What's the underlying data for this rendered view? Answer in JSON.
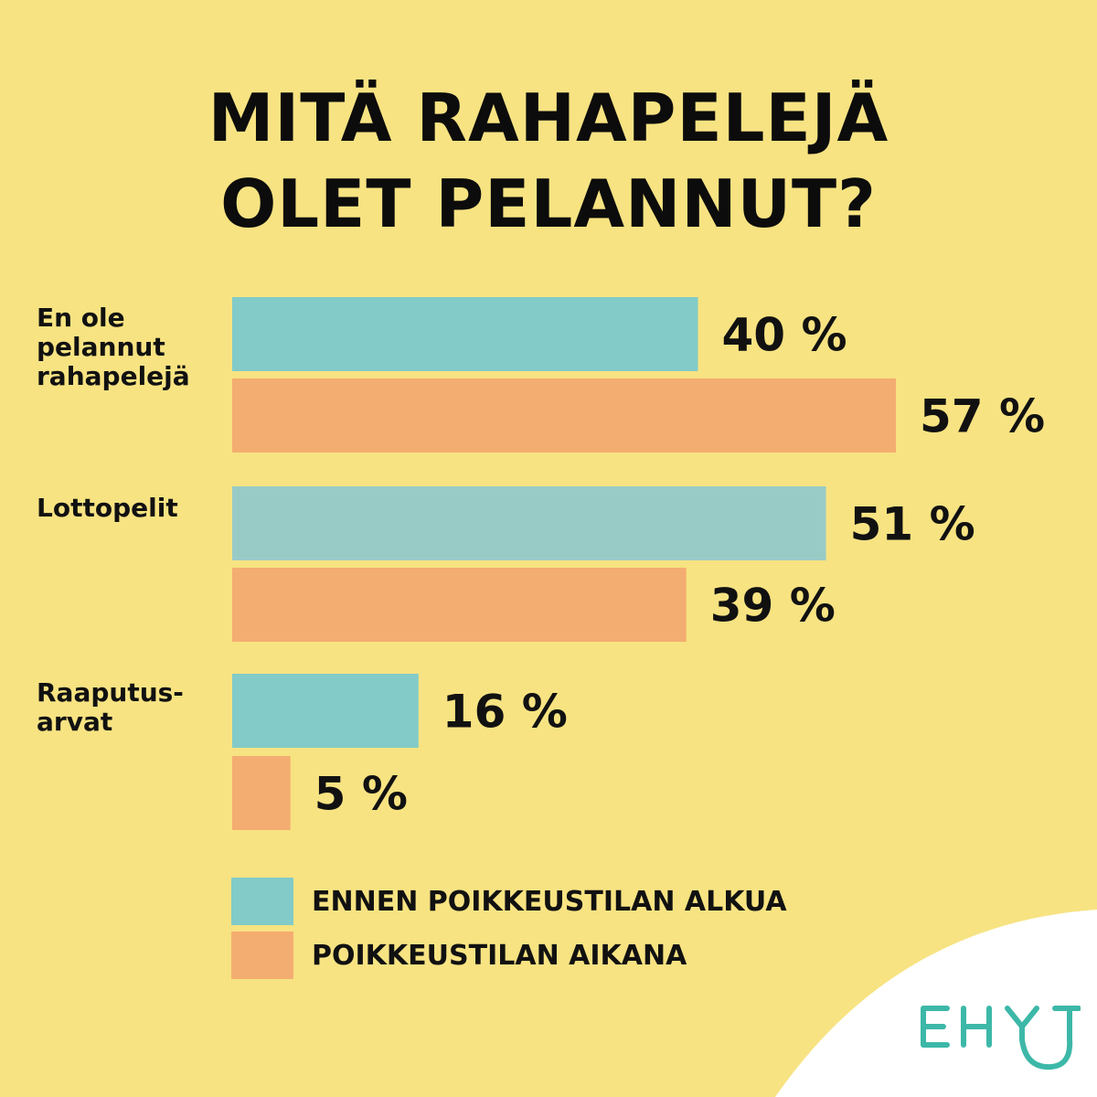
{
  "title_lines": [
    "MITÄ RAHAPELEJÄ",
    "OLET PELANNUT?"
  ],
  "chart_data": {
    "type": "bar",
    "orientation": "horizontal",
    "title": "MITÄ RAHAPELEJÄ OLET PELANNUT?",
    "categories": [
      "En ole\npelannut\nrahapelejä",
      "Lottopelit",
      "Raaputus-\narvat"
    ],
    "series": [
      {
        "name": "ENNEN POIKKEUSTILAN ALKUA",
        "values": [
          40,
          51,
          16
        ],
        "labels": [
          "40 %",
          "51 %",
          "16 %"
        ],
        "color": "#82cbc8"
      },
      {
        "name": "POIKKEUSTILAN AIKANA",
        "values": [
          57,
          39,
          5
        ],
        "labels": [
          "57 %",
          "39 %",
          "5 %"
        ],
        "color": "#f4ad70"
      }
    ],
    "bar_colors_override": {
      "1-0": "#99cbc6"
    },
    "xlim": [
      0,
      57
    ],
    "legend": "bottom-left",
    "grid": false
  },
  "colors": {
    "background": "#f7e382",
    "corner": "#ffffff",
    "logo": "#3db8a8",
    "text": "#111111"
  },
  "logo": {
    "text": "EHYT"
  }
}
